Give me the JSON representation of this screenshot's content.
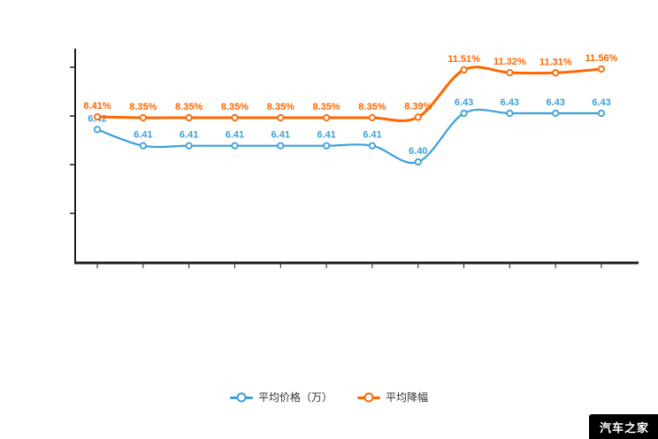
{
  "chart_data": {
    "type": "line",
    "title": "",
    "categories": [
      "",
      "",
      "",
      "",
      "",
      "",
      "",
      "",
      "",
      "",
      "",
      ""
    ],
    "x_axis_labels_visible": false,
    "y_axis_tick_labels_visible": false,
    "grid": false,
    "legend_position": "bottom",
    "series": [
      {
        "name": "平均价格（万）",
        "color": "#3BA0DC",
        "suffix": "",
        "values": [
          6.42,
          6.41,
          6.41,
          6.41,
          6.41,
          6.41,
          6.41,
          6.4,
          6.43,
          6.43,
          6.43,
          6.43
        ]
      },
      {
        "name": "平均降幅",
        "color": "#FF6600",
        "suffix": "%",
        "values": [
          8.41,
          8.35,
          8.35,
          8.35,
          8.35,
          8.35,
          8.35,
          8.39,
          11.51,
          11.32,
          11.31,
          11.56
        ]
      }
    ],
    "axis_color": "#1f1f1f"
  },
  "watermark": {
    "text": "汽车之家"
  }
}
